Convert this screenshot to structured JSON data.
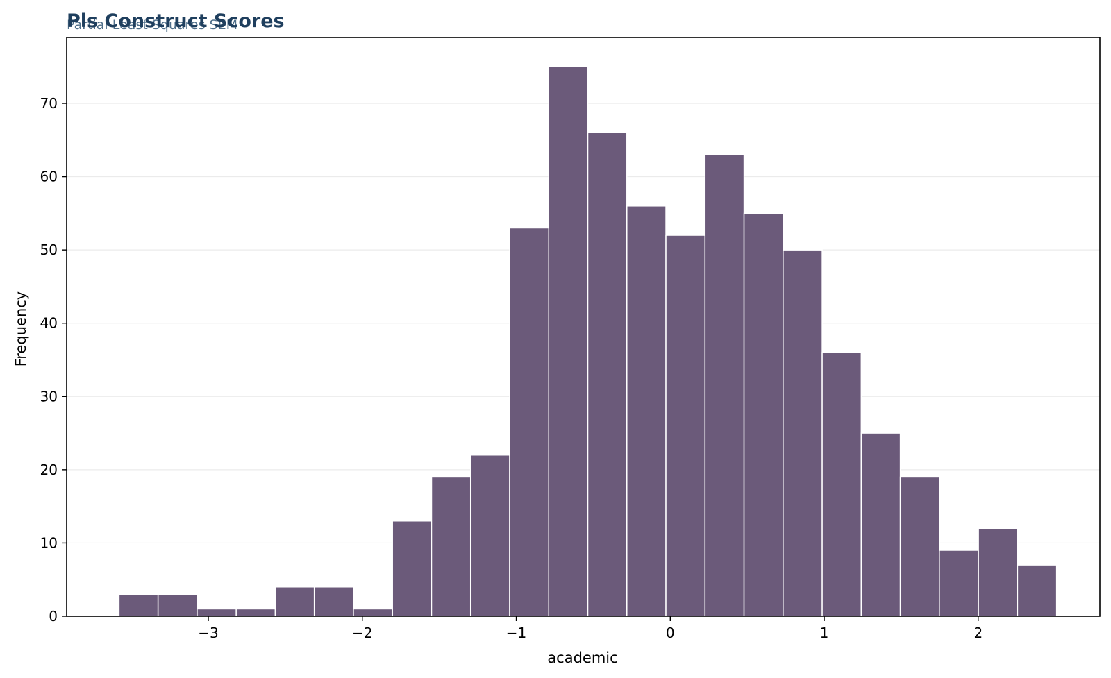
{
  "chart_data": {
    "type": "bar",
    "title": "Pls Construct Scores",
    "subtitle": "Partial Least Squares SEM",
    "xlabel": "academic",
    "ylabel": "Frequency",
    "bin_start": -3.58,
    "bin_width": 0.2537,
    "values": [
      3,
      3,
      1,
      1,
      4,
      4,
      1,
      13,
      19,
      22,
      53,
      75,
      66,
      56,
      52,
      63,
      55,
      50,
      36,
      25,
      19,
      9,
      12,
      7
    ],
    "xlim": [
      -3.92,
      2.79
    ],
    "ylim": [
      0,
      79
    ],
    "xticks": [
      {
        "value": -3,
        "label": "−3"
      },
      {
        "value": -2,
        "label": "−2"
      },
      {
        "value": -1,
        "label": "−1"
      },
      {
        "value": 0,
        "label": "0"
      },
      {
        "value": 1,
        "label": "1"
      },
      {
        "value": 2,
        "label": "2"
      }
    ],
    "yticks": [
      {
        "value": 0,
        "label": "0"
      },
      {
        "value": 10,
        "label": "10"
      },
      {
        "value": 20,
        "label": "20"
      },
      {
        "value": 30,
        "label": "30"
      },
      {
        "value": 40,
        "label": "40"
      },
      {
        "value": 50,
        "label": "50"
      },
      {
        "value": 60,
        "label": "60"
      },
      {
        "value": 70,
        "label": "70"
      }
    ],
    "grid": "horizontal",
    "colors": {
      "bar": "#6b5a7a",
      "bar_edge": "#ffffff",
      "title": "#1f3f5e",
      "subtitle": "#4f6f8a",
      "grid": "#ebebeb"
    }
  }
}
